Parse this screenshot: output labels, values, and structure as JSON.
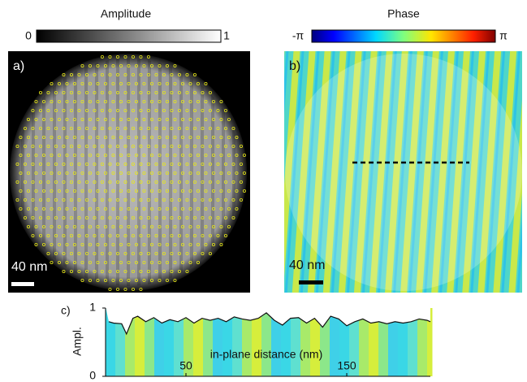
{
  "colorbars": [
    {
      "title": "Amplitude",
      "min_label": "0",
      "max_label": "1"
    },
    {
      "title": "Phase",
      "min_label": "-π",
      "max_label": "π"
    }
  ],
  "panels": [
    {
      "label": "a)",
      "scale_bar": "40 nm"
    },
    {
      "label": "b)",
      "scale_bar": "40 nm"
    }
  ],
  "chart_data": {
    "type": "line",
    "panel_label": "c)",
    "xlabel": "in-plane distance (nm)",
    "ylabel": "Ampl.",
    "xlim": [
      0,
      202
    ],
    "ylim": [
      0,
      1
    ],
    "xticks": [
      50,
      150
    ],
    "yticks": [
      0,
      1
    ],
    "color": "#111111",
    "x": [
      2,
      5,
      10,
      13,
      17,
      20,
      25,
      30,
      35,
      40,
      45,
      50,
      55,
      60,
      65,
      70,
      75,
      80,
      85,
      90,
      95,
      100,
      105,
      110,
      115,
      120,
      125,
      130,
      135,
      140,
      145,
      150,
      155,
      160,
      165,
      170,
      175,
      180,
      185,
      190,
      195,
      200,
      202
    ],
    "values": [
      0.8,
      0.78,
      0.77,
      0.62,
      0.85,
      0.88,
      0.8,
      0.86,
      0.78,
      0.83,
      0.8,
      0.86,
      0.78,
      0.85,
      0.82,
      0.85,
      0.8,
      0.87,
      0.84,
      0.82,
      0.85,
      0.93,
      0.82,
      0.75,
      0.85,
      0.86,
      0.78,
      0.85,
      0.72,
      0.88,
      0.84,
      0.74,
      0.8,
      0.84,
      0.78,
      0.8,
      0.77,
      0.8,
      0.78,
      0.8,
      0.84,
      0.82,
      0.8
    ]
  }
}
